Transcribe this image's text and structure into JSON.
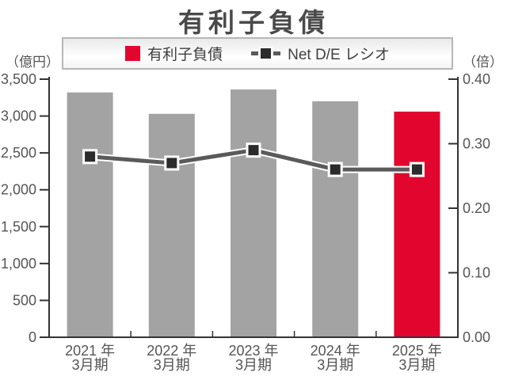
{
  "title": "有利子負債",
  "legend": {
    "bar_label": "有利子負債",
    "line_label": "Net D/E レシオ"
  },
  "axes": {
    "left_unit": "（億円）",
    "right_unit": "（倍）"
  },
  "colors": {
    "bar": "#a3a3a3",
    "bar_highlight": "#e2062f",
    "line": "#5a5a5a",
    "marker": "#2b2b2b",
    "marker_border": "#ffffff",
    "axis": "#333333",
    "tick_text": "#555555",
    "title_text": "#4a4a4a"
  },
  "chart_data": {
    "type": "bar+line",
    "title": "有利子負債",
    "categories": [
      {
        "line1": "2021 年",
        "line2": "3月期"
      },
      {
        "line1": "2022 年",
        "line2": "3月期"
      },
      {
        "line1": "2023 年",
        "line2": "3月期"
      },
      {
        "line1": "2024 年",
        "line2": "3月期"
      },
      {
        "line1": "2025 年",
        "line2": "3月期"
      }
    ],
    "series": [
      {
        "name": "有利子負債",
        "type": "bar",
        "axis": "left",
        "unit": "億円",
        "values": [
          3320,
          3030,
          3360,
          3200,
          3060
        ],
        "bar_colors": [
          "#a3a3a3",
          "#a3a3a3",
          "#a3a3a3",
          "#a3a3a3",
          "#e2062f"
        ]
      },
      {
        "name": "Net D/E レシオ",
        "type": "line",
        "axis": "right",
        "unit": "倍",
        "values": [
          0.28,
          0.27,
          0.29,
          0.26,
          0.26
        ],
        "marker": "square"
      }
    ],
    "left_axis": {
      "label": "（億円）",
      "min": 0,
      "max": 3500,
      "tick_interval": 500,
      "tick_labels": [
        "0",
        "500",
        "1,000",
        "1,500",
        "2,000",
        "2,500",
        "3,000",
        "3,500"
      ]
    },
    "right_axis": {
      "label": "（倍）",
      "min": 0,
      "max": 0.4,
      "tick_interval": 0.1,
      "tick_labels": [
        "0.00",
        "0.10",
        "0.20",
        "0.30",
        "0.40"
      ]
    },
    "grid": false,
    "legend_position": "top"
  }
}
